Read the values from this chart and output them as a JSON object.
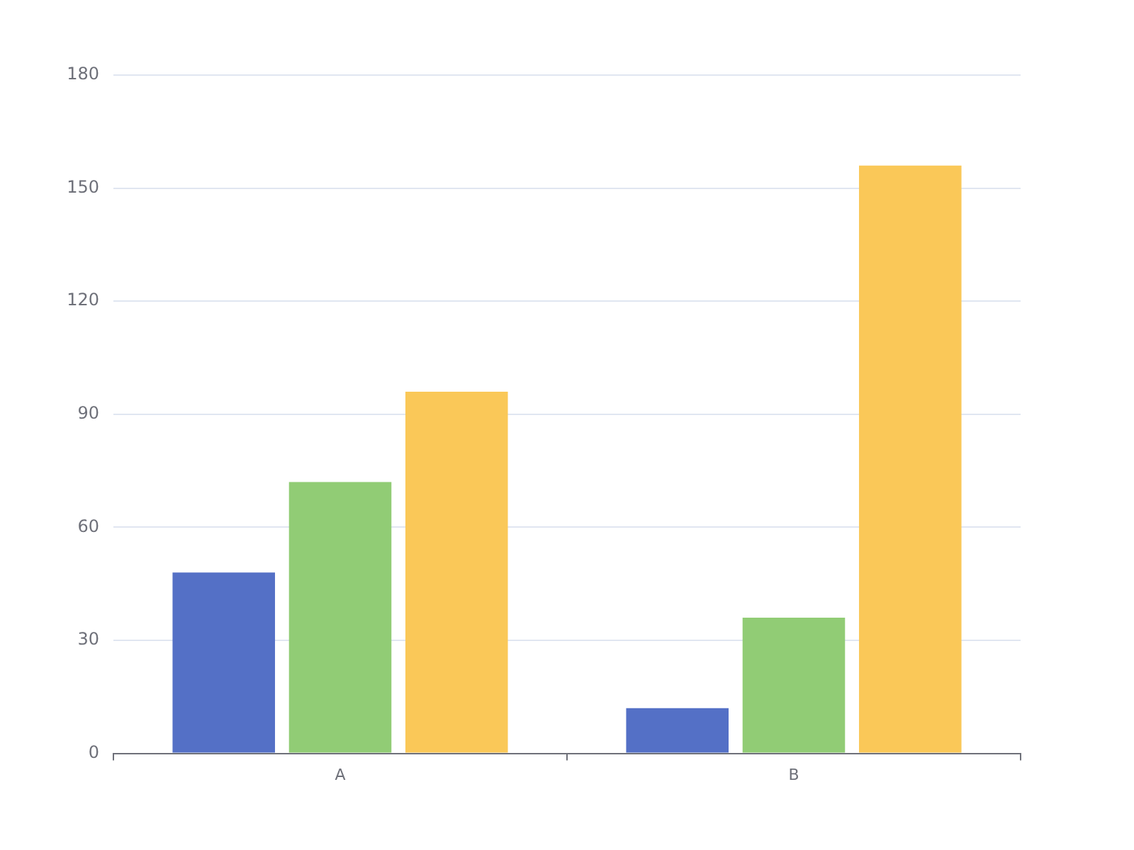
{
  "chart_data": {
    "type": "bar",
    "categories": [
      "A",
      "B"
    ],
    "series": [
      {
        "color": "#5470c6",
        "values": [
          48,
          12
        ]
      },
      {
        "color": "#91cc75",
        "values": [
          72,
          36
        ]
      },
      {
        "color": "#fac858",
        "values": [
          96,
          156
        ]
      }
    ],
    "ylim": [
      0,
      180
    ],
    "yticks": [
      0,
      30,
      60,
      90,
      120,
      150,
      180
    ],
    "grid": "y"
  }
}
